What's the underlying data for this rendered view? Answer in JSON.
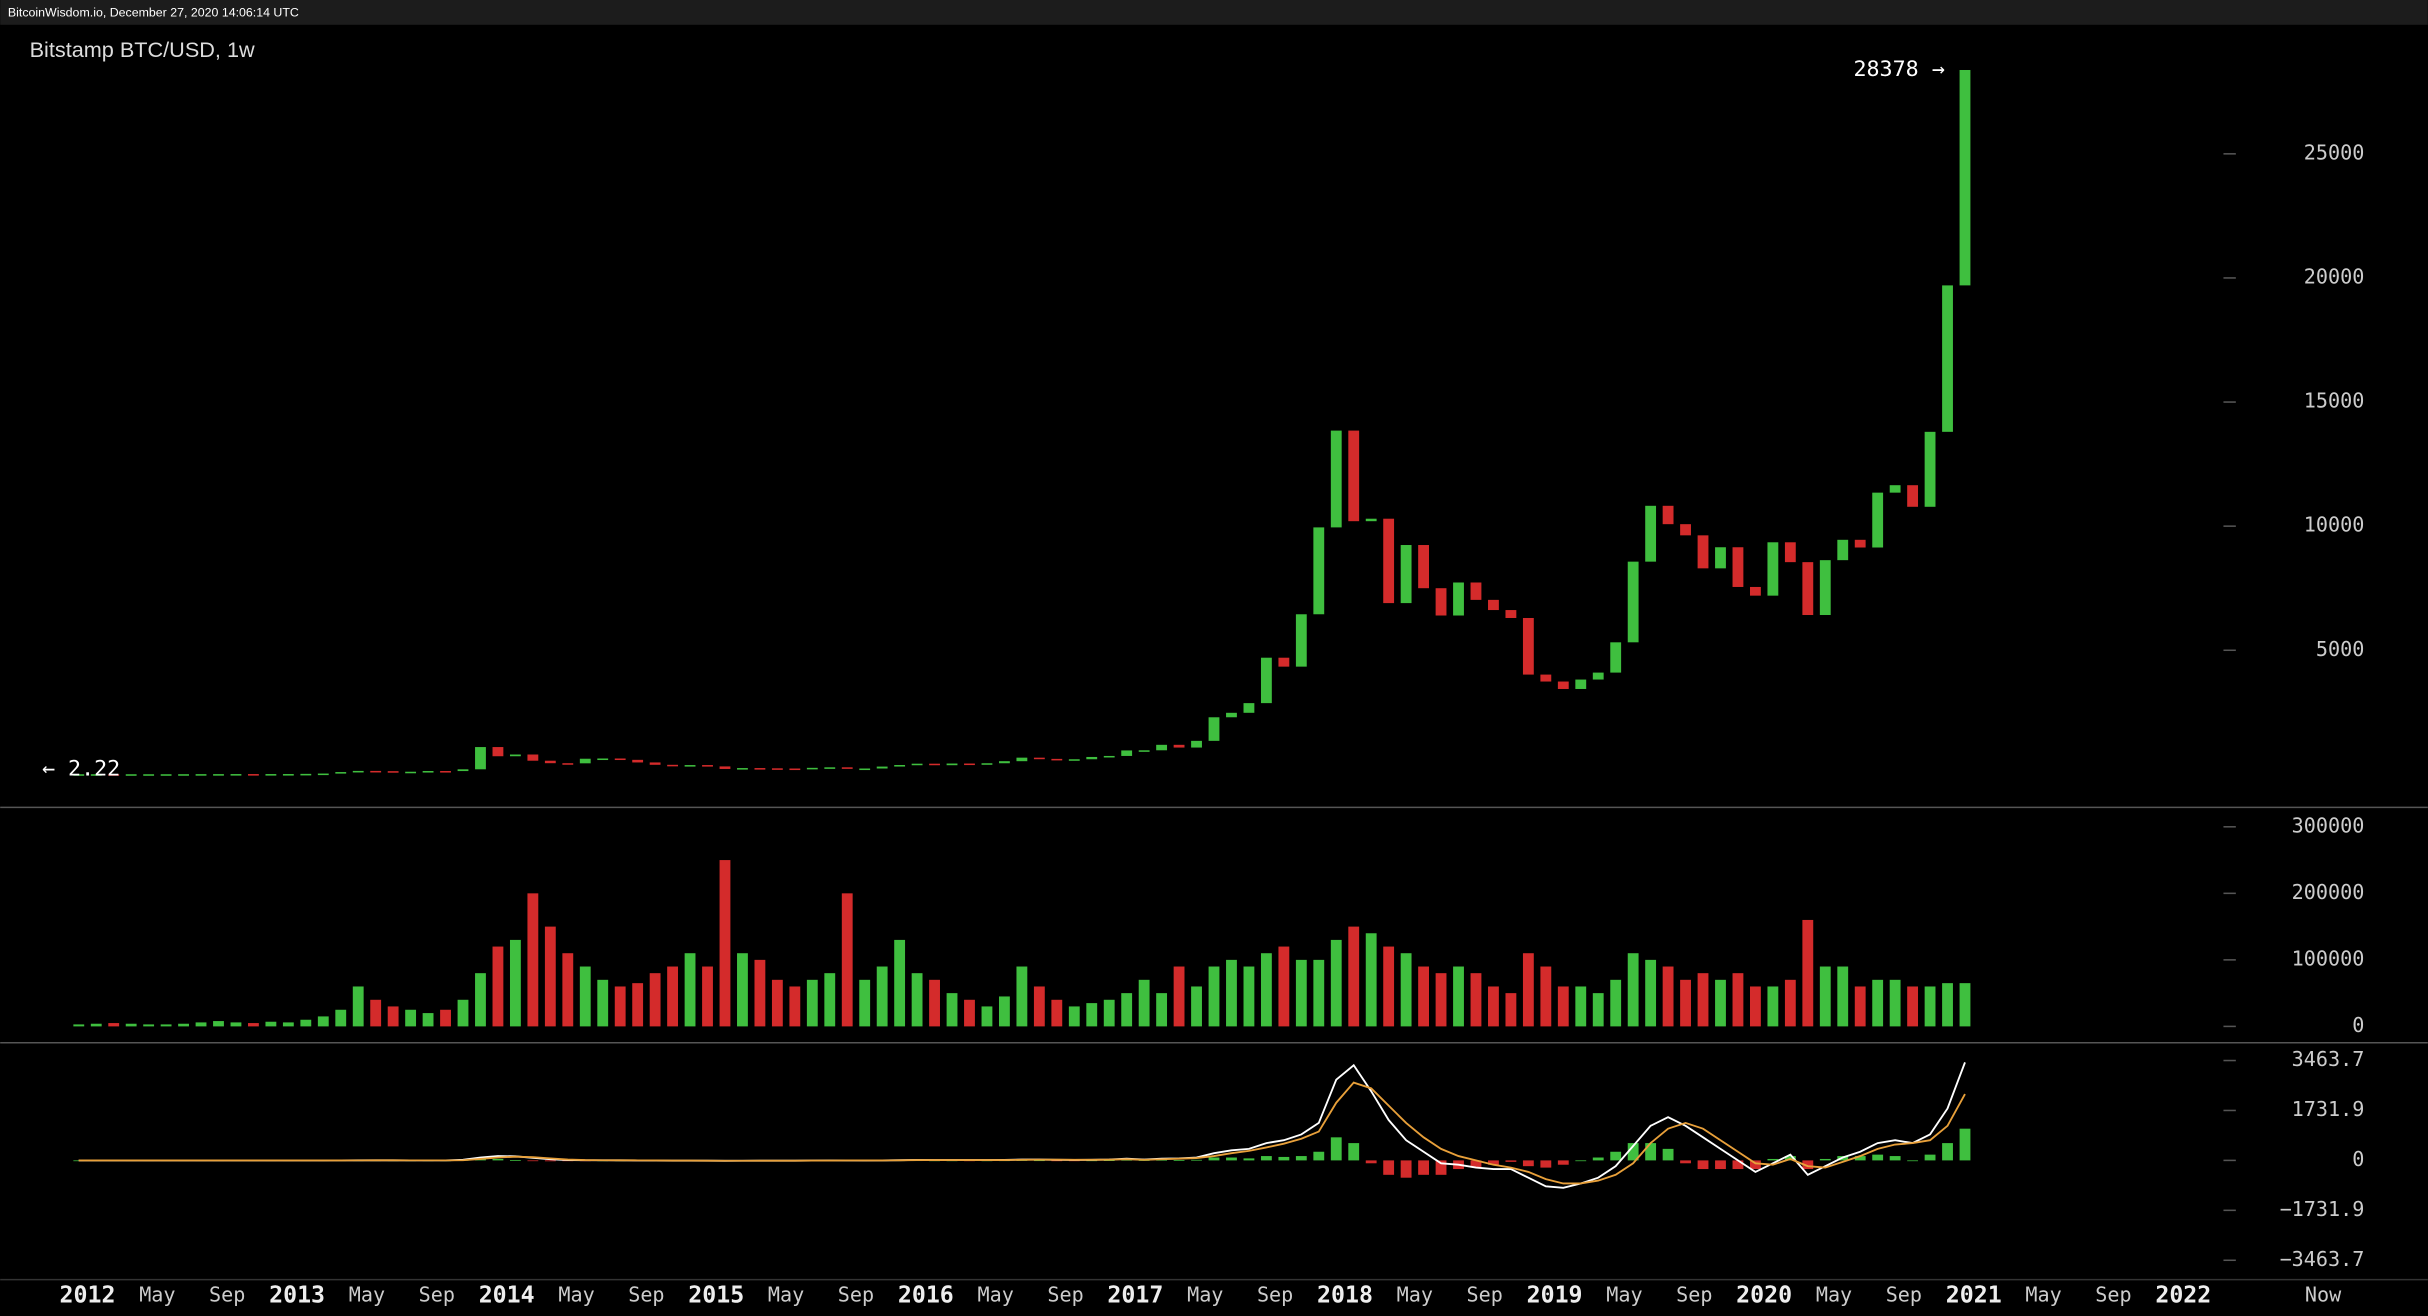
{
  "header": "BitcoinWisdom.io, December 27, 2020 14:06:14 UTC",
  "chart_data": [
    {
      "type": "candlestick",
      "title": "Bitstamp BTC/USD, 1w",
      "categories": [
        "2011-12",
        "2012-01",
        "2012-02",
        "2012-03",
        "2012-04",
        "2012-05",
        "2012-06",
        "2012-07",
        "2012-08",
        "2012-09",
        "2012-10",
        "2012-11",
        "2012-12",
        "2013-01",
        "2013-02",
        "2013-03",
        "2013-04",
        "2013-05",
        "2013-06",
        "2013-07",
        "2013-08",
        "2013-09",
        "2013-10",
        "2013-11",
        "2013-12",
        "2014-01",
        "2014-02",
        "2014-03",
        "2014-04",
        "2014-05",
        "2014-06",
        "2014-07",
        "2014-08",
        "2014-09",
        "2014-10",
        "2014-11",
        "2014-12",
        "2015-01",
        "2015-02",
        "2015-03",
        "2015-04",
        "2015-05",
        "2015-06",
        "2015-07",
        "2015-08",
        "2015-09",
        "2015-10",
        "2015-11",
        "2015-12",
        "2016-01",
        "2016-02",
        "2016-03",
        "2016-04",
        "2016-05",
        "2016-06",
        "2016-07",
        "2016-08",
        "2016-09",
        "2016-10",
        "2016-11",
        "2016-12",
        "2017-01",
        "2017-02",
        "2017-03",
        "2017-04",
        "2017-05",
        "2017-06",
        "2017-07",
        "2017-08",
        "2017-09",
        "2017-10",
        "2017-11",
        "2017-12",
        "2018-01",
        "2018-02",
        "2018-03",
        "2018-04",
        "2018-05",
        "2018-06",
        "2018-07",
        "2018-08",
        "2018-09",
        "2018-10",
        "2018-11",
        "2018-12",
        "2019-01",
        "2019-02",
        "2019-03",
        "2019-04",
        "2019-05",
        "2019-06",
        "2019-07",
        "2019-08",
        "2019-09",
        "2019-10",
        "2019-11",
        "2019-12",
        "2020-01",
        "2020-02",
        "2020-03",
        "2020-04",
        "2020-05",
        "2020-06",
        "2020-07",
        "2020-08",
        "2020-09",
        "2020-10",
        "2020-11",
        "2020-12"
      ],
      "values": [
        4.7,
        5.5,
        4.9,
        4.9,
        5.0,
        5.2,
        6.7,
        9.3,
        10.1,
        12.4,
        11.2,
        12.6,
        13.5,
        20,
        33,
        93,
        139,
        129,
        97,
        106,
        135,
        133,
        204,
        1100,
        730,
        800,
        550,
        450,
        445,
        630,
        640,
        585,
        480,
        385,
        338,
        375,
        320,
        218,
        254,
        244,
        236,
        230,
        263,
        284,
        230,
        236,
        314,
        377,
        430,
        369,
        437,
        416,
        448,
        531,
        673,
        624,
        575,
        609,
        701,
        742,
        964,
        970,
        1190,
        1080,
        1350,
        2300,
        2480,
        2870,
        4700,
        4340,
        6450,
        9950,
        13850,
        10200,
        10300,
        6900,
        9240,
        7500,
        6400,
        7730,
        7030,
        6620,
        6300,
        4020,
        3740,
        3440,
        3820,
        4100,
        5320,
        8570,
        10820,
        10080,
        9630,
        8300,
        9150,
        7550,
        7200,
        9350,
        8550,
        6420,
        8630,
        9450,
        9140,
        11350,
        11650,
        10780,
        13800,
        19700,
        28378
      ],
      "up_color": "#3fbf3f",
      "down_color": "#d42b2b",
      "last_price": {
        "value": 28378,
        "label": "28378 →"
      },
      "min_price": {
        "value": 2.22,
        "label": "← 2.22"
      },
      "xlim": [
        "2011-08",
        "2023-03"
      ],
      "xticks": [
        {
          "value": "2012-01",
          "label": "2012"
        },
        {
          "value": "2012-05",
          "label": "May"
        },
        {
          "value": "2012-09",
          "label": "Sep"
        },
        {
          "value": "2013-01",
          "label": "2013"
        },
        {
          "value": "2013-05",
          "label": "May"
        },
        {
          "value": "2013-09",
          "label": "Sep"
        },
        {
          "value": "2014-01",
          "label": "2014"
        },
        {
          "value": "2014-05",
          "label": "May"
        },
        {
          "value": "2014-09",
          "label": "Sep"
        },
        {
          "value": "2015-01",
          "label": "2015"
        },
        {
          "value": "2015-05",
          "label": "May"
        },
        {
          "value": "2015-09",
          "label": "Sep"
        },
        {
          "value": "2016-01",
          "label": "2016"
        },
        {
          "value": "2016-05",
          "label": "May"
        },
        {
          "value": "2016-09",
          "label": "Sep"
        },
        {
          "value": "2017-01",
          "label": "2017"
        },
        {
          "value": "2017-05",
          "label": "May"
        },
        {
          "value": "2017-09",
          "label": "Sep"
        },
        {
          "value": "2018-01",
          "label": "2018"
        },
        {
          "value": "2018-05",
          "label": "May"
        },
        {
          "value": "2018-09",
          "label": "Sep"
        },
        {
          "value": "2019-01",
          "label": "2019"
        },
        {
          "value": "2019-05",
          "label": "May"
        },
        {
          "value": "2019-09",
          "label": "Sep"
        },
        {
          "value": "2020-01",
          "label": "2020"
        },
        {
          "value": "2020-05",
          "label": "May"
        },
        {
          "value": "2020-09",
          "label": "Sep"
        },
        {
          "value": "2021-01",
          "label": "2021"
        },
        {
          "value": "2021-05",
          "label": "May"
        },
        {
          "value": "2021-09",
          "label": "Sep"
        },
        {
          "value": "2022-01",
          "label": "2022"
        },
        {
          "value": "2022-09",
          "label": "Now"
        }
      ],
      "ylim": [
        -1300,
        30200
      ],
      "yticks": [
        5000,
        10000,
        15000,
        20000,
        25000
      ]
    },
    {
      "type": "bar",
      "values": [
        3000,
        4000,
        5000,
        4000,
        3000,
        3000,
        4000,
        6000,
        8000,
        6000,
        5000,
        7000,
        6000,
        10000,
        15000,
        25000,
        60000,
        40000,
        30000,
        25000,
        20000,
        25000,
        40000,
        80000,
        120000,
        130000,
        200000,
        150000,
        110000,
        90000,
        70000,
        60000,
        65000,
        80000,
        90000,
        110000,
        90000,
        250000,
        110000,
        100000,
        70000,
        60000,
        70000,
        80000,
        200000,
        70000,
        90000,
        130000,
        80000,
        70000,
        50000,
        40000,
        30000,
        45000,
        90000,
        60000,
        40000,
        30000,
        35000,
        40000,
        50000,
        70000,
        50000,
        90000,
        60000,
        90000,
        100000,
        90000,
        110000,
        120000,
        100000,
        100000,
        130000,
        150000,
        140000,
        120000,
        110000,
        90000,
        80000,
        90000,
        80000,
        60000,
        50000,
        110000,
        90000,
        60000,
        60000,
        50000,
        70000,
        110000,
        100000,
        90000,
        70000,
        80000,
        70000,
        80000,
        60000,
        60000,
        70000,
        160000,
        90000,
        90000,
        60000,
        70000,
        70000,
        60000,
        60000,
        65000,
        65000
      ],
      "ylim": [
        -23400,
        328000
      ],
      "yticks": [
        0,
        100000,
        200000,
        300000
      ]
    },
    {
      "type": "macd",
      "series": [
        {
          "color": "#ffffff",
          "values": [
            0,
            0,
            0,
            0,
            0,
            0,
            0,
            0,
            0,
            0,
            0,
            0,
            0,
            0,
            0,
            1,
            3,
            3,
            2,
            1,
            1,
            1,
            20,
            100,
            150,
            140,
            90,
            40,
            10,
            5,
            5,
            3,
            0,
            -5,
            -8,
            -8,
            -10,
            -15,
            -12,
            -10,
            -10,
            -8,
            -5,
            -3,
            -3,
            -4,
            0,
            8,
            15,
            12,
            12,
            10,
            10,
            15,
            30,
            30,
            20,
            15,
            20,
            30,
            60,
            30,
            60,
            70,
            100,
            250,
            350,
            400,
            600,
            700,
            900,
            1300,
            2800,
            3300,
            2400,
            1400,
            700,
            300,
            -100,
            -150,
            -250,
            -300,
            -300,
            -600,
            -900,
            -950,
            -800,
            -600,
            -200,
            500,
            1200,
            1500,
            1200,
            800,
            400,
            0,
            -400,
            -100,
            200,
            -500,
            -200,
            100,
            300,
            600,
            700,
            600,
            900,
            1800,
            3400
          ]
        },
        {
          "color": "#e8a03a",
          "values": [
            0,
            0,
            0,
            0,
            0,
            0,
            0,
            0,
            0,
            0,
            0,
            0,
            0,
            0,
            0,
            0,
            1,
            2,
            2,
            1,
            1,
            1,
            5,
            50,
            100,
            130,
            110,
            70,
            30,
            10,
            5,
            3,
            1,
            -2,
            -5,
            -7,
            -8,
            -12,
            -12,
            -11,
            -10,
            -9,
            -6,
            -4,
            -3,
            -3,
            -2,
            4,
            10,
            12,
            12,
            11,
            10,
            12,
            20,
            26,
            24,
            19,
            19,
            24,
            40,
            20,
            40,
            60,
            80,
            150,
            250,
            330,
            450,
            580,
            750,
            1000,
            2000,
            2700,
            2500,
            1900,
            1300,
            800,
            400,
            150,
            0,
            -150,
            -250,
            -400,
            -650,
            -800,
            -800,
            -700,
            -500,
            -100,
            600,
            1100,
            1300,
            1100,
            700,
            300,
            -100,
            -150,
            50,
            -200,
            -250,
            -50,
            150,
            400,
            550,
            600,
            700,
            1200,
            2300
          ]
        },
        {
          "kind": "histogram",
          "values": [
            0,
            0,
            0,
            0,
            0,
            0,
            0,
            0,
            0,
            0,
            0,
            0,
            0,
            0,
            0,
            1,
            2,
            1,
            0,
            0,
            0,
            0,
            15,
            50,
            50,
            10,
            -20,
            -30,
            -20,
            -5,
            0,
            0,
            -1,
            -3,
            -3,
            -1,
            -2,
            -3,
            0,
            1,
            0,
            1,
            1,
            1,
            0,
            -1,
            2,
            4,
            5,
            0,
            0,
            -1,
            0,
            3,
            10,
            4,
            -4,
            -4,
            1,
            6,
            20,
            10,
            20,
            10,
            20,
            100,
            100,
            70,
            150,
            120,
            150,
            300,
            800,
            600,
            -100,
            -500,
            -600,
            -500,
            -500,
            -300,
            -250,
            -150,
            -50,
            -200,
            -250,
            -150,
            0,
            100,
            300,
            600,
            600,
            400,
            -100,
            -300,
            -300,
            -300,
            -300,
            50,
            150,
            -300,
            50,
            150,
            150,
            200,
            150,
            0,
            200,
            600,
            1100
          ]
        }
      ],
      "ylim": [
        -4108,
        4054
      ],
      "yticks": [
        {
          "value": -3463.7,
          "label": "−3463.7"
        },
        {
          "value": -1731.9,
          "label": "−1731.9"
        },
        0,
        1731.9,
        3463.7
      ]
    }
  ]
}
